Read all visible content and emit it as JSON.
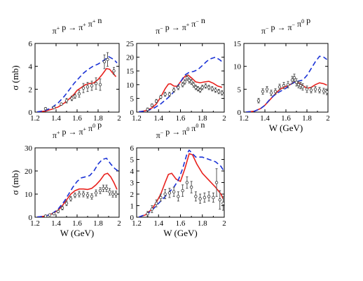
{
  "figure": {
    "ylabel": "σ (mb)",
    "xlabel": "W (GeV)"
  },
  "style": {
    "model_color": "#e8211d",
    "alt_color": "#1a32d6",
    "data_color": "#555555"
  },
  "chart_data": [
    {
      "type": "line",
      "title_parts": [
        [
          "π",
          "+"
        ],
        [
          " p → π",
          "+"
        ],
        [
          " π",
          "+"
        ],
        [
          " n",
          ""
        ]
      ],
      "xlim": [
        1.2,
        2.0
      ],
      "ylim": [
        0,
        6
      ],
      "xticks": [
        "1.2",
        "1.4",
        "1.6",
        "1.8",
        "2"
      ],
      "yticks": [
        "0",
        "2",
        "4",
        "6"
      ],
      "xlabel": "",
      "ylabel": "σ (mb)",
      "legend": "none",
      "series": [
        {
          "style": "solid",
          "x": [
            1.22,
            1.3,
            1.36,
            1.42,
            1.48,
            1.53,
            1.57,
            1.6,
            1.64,
            1.68,
            1.72,
            1.76,
            1.8,
            1.84,
            1.88,
            1.91,
            1.94,
            1.97
          ],
          "y": [
            0.02,
            0.1,
            0.25,
            0.45,
            0.8,
            1.2,
            1.55,
            1.9,
            2.15,
            2.4,
            2.5,
            2.55,
            2.85,
            3.3,
            3.8,
            3.75,
            3.4,
            3.1
          ]
        },
        {
          "style": "dashed",
          "x": [
            1.22,
            1.3,
            1.36,
            1.42,
            1.48,
            1.53,
            1.57,
            1.62,
            1.66,
            1.7,
            1.75,
            1.8,
            1.85,
            1.9,
            1.95,
            1.98
          ],
          "y": [
            0.02,
            0.15,
            0.4,
            0.8,
            1.4,
            2.0,
            2.5,
            3.0,
            3.4,
            3.7,
            4.0,
            4.2,
            4.5,
            4.85,
            4.6,
            4.3
          ]
        },
        {
          "style": "markers",
          "x": [
            1.3,
            1.38,
            1.45,
            1.5,
            1.55,
            1.58,
            1.62,
            1.66,
            1.7,
            1.74,
            1.78,
            1.82,
            1.86,
            1.89,
            1.95
          ],
          "y": [
            0.3,
            0.4,
            0.7,
            1.0,
            1.2,
            1.4,
            1.6,
            2.1,
            2.2,
            2.3,
            2.5,
            2.4,
            4.4,
            4.6,
            3.6
          ],
          "err": [
            0.1,
            0.1,
            0.1,
            0.2,
            0.2,
            0.2,
            0.3,
            0.4,
            0.4,
            0.4,
            0.5,
            0.5,
            0.6,
            0.6,
            0.3
          ]
        }
      ]
    },
    {
      "type": "line",
      "title_parts": [
        [
          "π",
          "−"
        ],
        [
          " p → π",
          "+"
        ],
        [
          " π",
          "−"
        ],
        [
          " n",
          ""
        ]
      ],
      "xlim": [
        1.2,
        2.0
      ],
      "ylim": [
        0,
        25
      ],
      "xticks": [
        "1.2",
        "1.4",
        "1.6",
        "1.8",
        "2"
      ],
      "yticks": [
        "0",
        "5",
        "10",
        "15",
        "20",
        "25"
      ],
      "xlabel": "",
      "ylabel": "",
      "legend": "none",
      "series": [
        {
          "style": "solid",
          "x": [
            1.22,
            1.28,
            1.34,
            1.38,
            1.42,
            1.46,
            1.49,
            1.51,
            1.54,
            1.57,
            1.6,
            1.64,
            1.67,
            1.7,
            1.74,
            1.78,
            1.82,
            1.86,
            1.9,
            1.94,
            1.98
          ],
          "y": [
            0.1,
            0.5,
            1.5,
            3.0,
            5.5,
            8.5,
            10.2,
            10.3,
            9.5,
            9.4,
            11.0,
            13.0,
            13.5,
            12.5,
            11.0,
            10.7,
            11.0,
            11.2,
            10.5,
            9.5,
            9.0
          ]
        },
        {
          "style": "dashed",
          "x": [
            1.22,
            1.3,
            1.36,
            1.42,
            1.48,
            1.52,
            1.56,
            1.6,
            1.64,
            1.68,
            1.72,
            1.76,
            1.8,
            1.84,
            1.88,
            1.92,
            1.96,
            1.99
          ],
          "y": [
            0.1,
            0.5,
            1.5,
            3.0,
            5.0,
            6.5,
            8.5,
            11.0,
            13.5,
            14.5,
            14.8,
            15.5,
            17.0,
            18.5,
            19.5,
            20.0,
            19.0,
            18.0
          ]
        },
        {
          "style": "markers",
          "x": [
            1.3,
            1.34,
            1.38,
            1.42,
            1.46,
            1.5,
            1.54,
            1.58,
            1.62,
            1.64,
            1.66,
            1.68,
            1.7,
            1.72,
            1.74,
            1.76,
            1.78,
            1.8,
            1.83,
            1.86,
            1.89,
            1.92,
            1.95,
            1.98
          ],
          "y": [
            1.0,
            2.5,
            4.0,
            5.5,
            6.5,
            6.5,
            8.0,
            9.0,
            10.0,
            11.0,
            12.5,
            11.5,
            11.0,
            10.0,
            9.0,
            8.5,
            8.0,
            9.0,
            9.5,
            9.0,
            8.5,
            8.0,
            7.5,
            7.0
          ],
          "err": [
            0.5,
            0.5,
            0.6,
            0.6,
            0.7,
            0.7,
            0.8,
            0.8,
            0.8,
            0.8,
            0.9,
            0.9,
            0.9,
            0.9,
            0.8,
            0.8,
            0.8,
            0.8,
            0.8,
            0.8,
            0.8,
            0.8,
            0.8,
            0.8
          ]
        }
      ]
    },
    {
      "type": "line",
      "title_parts": [
        [
          "π",
          "−"
        ],
        [
          " p → π",
          "−"
        ],
        [
          " π",
          "0"
        ],
        [
          " p",
          ""
        ]
      ],
      "xlim": [
        1.2,
        2.0
      ],
      "ylim": [
        0,
        15
      ],
      "xticks": [
        "1.2",
        "1.4",
        "1.6",
        "1.8",
        "2"
      ],
      "yticks": [
        "0",
        "5",
        "10",
        "15"
      ],
      "xlabel": "W (GeV)",
      "ylabel": "",
      "legend": "none",
      "series": [
        {
          "style": "solid",
          "x": [
            1.22,
            1.3,
            1.36,
            1.4,
            1.44,
            1.48,
            1.52,
            1.56,
            1.6,
            1.64,
            1.68,
            1.72,
            1.76,
            1.8,
            1.84,
            1.88,
            1.92,
            1.96,
            1.99
          ],
          "y": [
            0.02,
            0.2,
            0.8,
            1.5,
            2.5,
            3.5,
            4.5,
            5.2,
            5.6,
            6.0,
            6.6,
            6.4,
            5.8,
            5.2,
            5.4,
            6.0,
            6.4,
            6.2,
            5.9
          ]
        },
        {
          "style": "dashed",
          "x": [
            1.22,
            1.3,
            1.36,
            1.4,
            1.44,
            1.48,
            1.52,
            1.56,
            1.6,
            1.64,
            1.68,
            1.72,
            1.76,
            1.8,
            1.84,
            1.88,
            1.92,
            1.96,
            1.99
          ],
          "y": [
            0.02,
            0.2,
            0.8,
            1.5,
            2.6,
            3.5,
            4.2,
            4.7,
            5.2,
            6.0,
            6.5,
            6.8,
            7.0,
            8.0,
            9.5,
            11.0,
            12.2,
            12.0,
            11.5
          ]
        },
        {
          "style": "markers",
          "x": [
            1.34,
            1.38,
            1.42,
            1.46,
            1.5,
            1.54,
            1.58,
            1.62,
            1.66,
            1.68,
            1.7,
            1.72,
            1.74,
            1.76,
            1.8,
            1.84,
            1.88,
            1.92,
            1.96,
            1.99
          ],
          "y": [
            2.5,
            4.5,
            5.0,
            4.2,
            4.5,
            5.5,
            5.8,
            6.0,
            7.0,
            7.5,
            6.5,
            6.0,
            5.8,
            5.5,
            5.0,
            4.8,
            5.0,
            4.8,
            4.6,
            4.4
          ],
          "err": [
            0.5,
            0.6,
            0.6,
            0.6,
            0.6,
            0.6,
            0.7,
            0.7,
            0.8,
            0.8,
            0.8,
            0.7,
            0.7,
            0.7,
            0.7,
            0.6,
            0.6,
            0.6,
            0.6,
            0.6
          ]
        }
      ]
    },
    {
      "type": "line",
      "title_parts": [
        [
          "π",
          "+"
        ],
        [
          " p → π",
          "+"
        ],
        [
          " π",
          "0"
        ],
        [
          " p",
          ""
        ]
      ],
      "xlim": [
        1.2,
        2.0
      ],
      "ylim": [
        0,
        30
      ],
      "xticks": [
        "1.2",
        "1.4",
        "1.6",
        "1.8",
        "2"
      ],
      "yticks": [
        "0",
        "10",
        "20",
        "30"
      ],
      "xlabel": "W (GeV)",
      "ylabel": "σ (mb)",
      "legend": "none",
      "series": [
        {
          "style": "solid",
          "x": [
            1.22,
            1.3,
            1.36,
            1.42,
            1.46,
            1.5,
            1.54,
            1.58,
            1.62,
            1.66,
            1.7,
            1.74,
            1.78,
            1.82,
            1.86,
            1.89,
            1.92,
            1.95,
            1.98
          ],
          "y": [
            0.1,
            0.5,
            1.5,
            3.0,
            5.0,
            7.5,
            10.0,
            11.5,
            12.2,
            12.2,
            12.0,
            12.5,
            14.0,
            16.0,
            18.5,
            19.0,
            17.5,
            15.0,
            12.0
          ]
        },
        {
          "style": "dashed",
          "x": [
            1.22,
            1.3,
            1.36,
            1.42,
            1.48,
            1.52,
            1.56,
            1.6,
            1.64,
            1.68,
            1.72,
            1.76,
            1.8,
            1.84,
            1.88,
            1.92,
            1.96,
            1.99
          ],
          "y": [
            0.1,
            0.5,
            1.5,
            3.5,
            7.0,
            10.0,
            13.0,
            15.5,
            17.0,
            17.5,
            18.0,
            20.0,
            23.0,
            25.0,
            25.5,
            23.0,
            21.0,
            20.0
          ]
        },
        {
          "style": "markers",
          "x": [
            1.3,
            1.34,
            1.38,
            1.42,
            1.46,
            1.5,
            1.54,
            1.58,
            1.62,
            1.66,
            1.7,
            1.74,
            1.78,
            1.82,
            1.85,
            1.88,
            1.91,
            1.94,
            1.97
          ],
          "y": [
            0.5,
            1.0,
            1.5,
            2.5,
            4.0,
            6.0,
            8.0,
            9.5,
            10.0,
            10.0,
            9.5,
            9.0,
            10.5,
            11.5,
            12.5,
            12.5,
            11.0,
            10.0,
            10.0
          ],
          "err": [
            0.3,
            0.4,
            0.5,
            0.6,
            0.8,
            1.0,
            1.0,
            1.0,
            1.2,
            1.2,
            1.2,
            1.2,
            1.3,
            1.3,
            1.4,
            1.4,
            1.4,
            1.3,
            1.3
          ]
        }
      ]
    },
    {
      "type": "line",
      "title_parts": [
        [
          "π",
          "−"
        ],
        [
          " p → π",
          "0"
        ],
        [
          " π",
          "0"
        ],
        [
          " n",
          ""
        ]
      ],
      "xlim": [
        1.2,
        2.0
      ],
      "ylim": [
        0,
        6
      ],
      "xticks": [
        "1.2",
        "1.4",
        "1.6",
        "1.8",
        "2"
      ],
      "yticks": [
        "0",
        "1",
        "2",
        "3",
        "4",
        "5",
        "6"
      ],
      "xlabel": "W (GeV)",
      "ylabel": "",
      "legend": "none",
      "series": [
        {
          "style": "solid",
          "x": [
            1.22,
            1.28,
            1.34,
            1.38,
            1.42,
            1.46,
            1.49,
            1.52,
            1.56,
            1.6,
            1.64,
            1.68,
            1.71,
            1.75,
            1.8,
            1.86,
            1.92,
            1.97,
            1.99
          ],
          "y": [
            0.02,
            0.2,
            0.7,
            1.3,
            2.0,
            3.0,
            3.7,
            3.8,
            3.3,
            3.1,
            4.2,
            5.5,
            5.4,
            4.6,
            3.8,
            3.2,
            2.6,
            2.0,
            1.6
          ]
        },
        {
          "style": "dashed",
          "x": [
            1.22,
            1.3,
            1.36,
            1.42,
            1.48,
            1.54,
            1.58,
            1.62,
            1.66,
            1.68,
            1.7,
            1.74,
            1.8,
            1.86,
            1.92,
            1.97,
            1.99
          ],
          "y": [
            0.02,
            0.3,
            0.8,
            1.4,
            2.0,
            2.6,
            3.2,
            4.2,
            5.5,
            5.8,
            5.6,
            5.2,
            5.2,
            5.0,
            4.8,
            4.4,
            4.1
          ]
        },
        {
          "style": "markers",
          "x": [
            1.3,
            1.34,
            1.38,
            1.42,
            1.46,
            1.5,
            1.54,
            1.58,
            1.62,
            1.66,
            1.7,
            1.74,
            1.78,
            1.82,
            1.86,
            1.9,
            1.93,
            1.96,
            1.99
          ],
          "y": [
            0.3,
            0.7,
            1.2,
            1.7,
            2.0,
            2.1,
            2.2,
            1.8,
            2.3,
            3.0,
            2.6,
            1.8,
            1.6,
            1.7,
            1.8,
            1.7,
            3.0,
            1.5,
            1.2
          ],
          "err": [
            0.2,
            0.3,
            0.3,
            0.3,
            0.4,
            0.4,
            0.4,
            0.4,
            0.5,
            0.5,
            0.5,
            0.4,
            0.4,
            0.4,
            0.4,
            0.4,
            1.2,
            0.8,
            0.6
          ]
        }
      ]
    }
  ]
}
